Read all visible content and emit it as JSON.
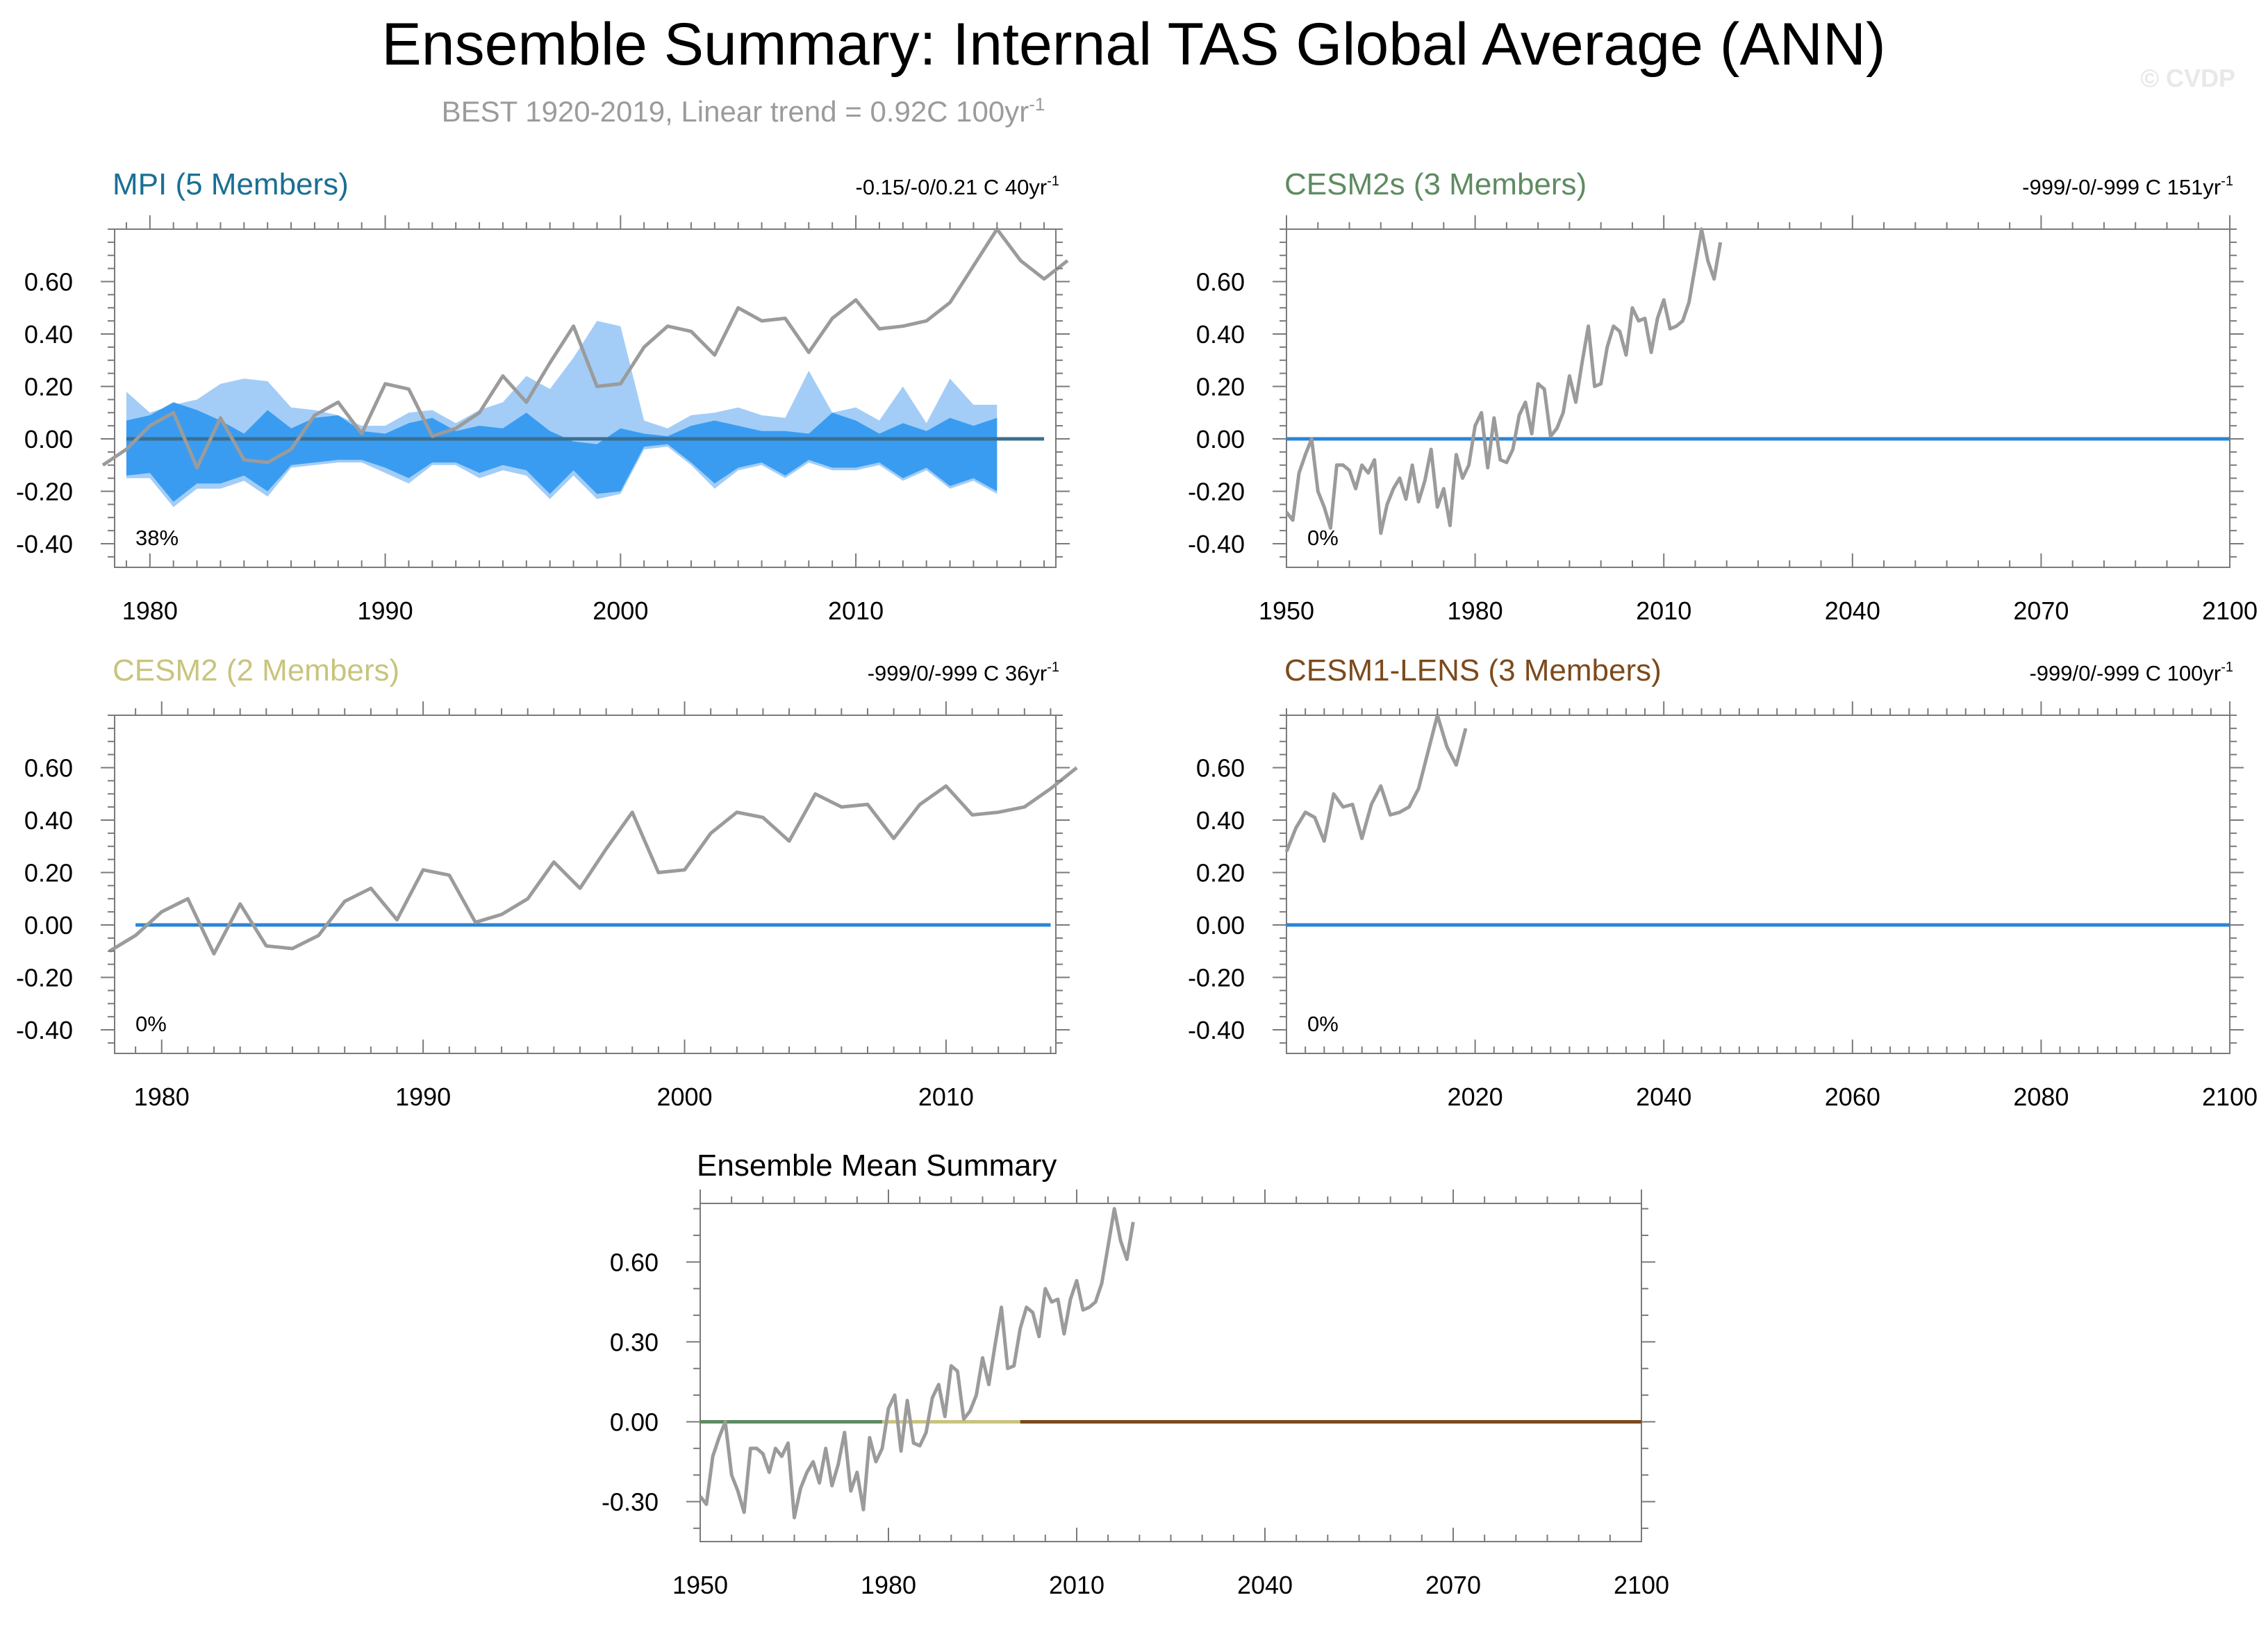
{
  "header": {
    "title": "Ensemble Summary: Internal TAS Global Average (ANN)",
    "subtitle": "BEST 1920-2019, Linear trend = 0.92C 100yr",
    "subtitle_sup": "-1",
    "watermark": "© CVDP"
  },
  "colors": {
    "obs": "#9b9b9b",
    "zero": "#2a84d6",
    "band_outer": "#a3cdf7",
    "band_inner": "#3a9cf0",
    "mpi": "#1a6f94",
    "cesm2s": "#5e8b61",
    "cesm2": "#c9c47e",
    "cesm1": "#7c4a1c",
    "text": "#000000",
    "frame": "#7a7a7a"
  },
  "chart_data": [
    {
      "id": "mpi",
      "type": "area",
      "title": "MPI (5 Members)",
      "title_color": "#1a6f94",
      "right_label": "-0.15/-0/0.21 C 40yr",
      "right_sup": "-1",
      "pct_label": "38%",
      "xlim": [
        1978.5,
        2018.5
      ],
      "ylim": [
        -0.49,
        0.8
      ],
      "xticks": [
        1980,
        1990,
        2000,
        2010
      ],
      "xtick_labels": [
        "1980",
        "1990",
        "2000",
        "2010"
      ],
      "yticks": [
        -0.4,
        -0.2,
        0.0,
        0.2,
        0.4,
        0.6
      ],
      "ytick_labels": [
        "-0.40",
        "-0.20",
        "0.00",
        "0.20",
        "0.40",
        "0.60"
      ],
      "x_minor": 1,
      "y_minor": 0.05,
      "ensemble_band": {
        "x_start": 1979,
        "outer_upper": [
          0.18,
          0.1,
          0.13,
          0.15,
          0.21,
          0.23,
          0.22,
          0.12,
          0.11,
          0.09,
          0.05,
          0.05,
          0.1,
          0.11,
          0.06,
          0.11,
          0.14,
          0.24,
          0.19,
          0.31,
          0.45,
          0.43,
          0.07,
          0.04,
          0.09,
          0.1,
          0.12,
          0.09,
          0.08,
          0.26,
          0.1,
          0.12,
          0.07,
          0.2,
          0.06,
          0.23,
          0.13,
          0.13
        ],
        "inner_upper": [
          0.07,
          0.09,
          0.14,
          0.11,
          0.07,
          0.02,
          0.11,
          0.04,
          0.08,
          0.09,
          0.03,
          0.02,
          0.06,
          0.08,
          0.03,
          0.05,
          0.04,
          0.1,
          0.03,
          -0.01,
          -0.02,
          0.04,
          0.02,
          0.01,
          0.05,
          0.07,
          0.05,
          0.03,
          0.03,
          0.02,
          0.1,
          0.07,
          0.02,
          0.06,
          0.03,
          0.08,
          0.05,
          0.08
        ],
        "inner_lower": [
          -0.14,
          -0.13,
          -0.24,
          -0.17,
          -0.17,
          -0.14,
          -0.2,
          -0.1,
          -0.09,
          -0.08,
          -0.08,
          -0.11,
          -0.15,
          -0.09,
          -0.09,
          -0.13,
          -0.1,
          -0.12,
          -0.21,
          -0.12,
          -0.21,
          -0.2,
          -0.03,
          -0.02,
          -0.09,
          -0.17,
          -0.11,
          -0.09,
          -0.14,
          -0.08,
          -0.11,
          -0.11,
          -0.09,
          -0.15,
          -0.11,
          -0.18,
          -0.15,
          -0.2
        ],
        "outer_lower": [
          -0.15,
          -0.15,
          -0.26,
          -0.19,
          -0.19,
          -0.16,
          -0.22,
          -0.11,
          -0.1,
          -0.09,
          -0.09,
          -0.13,
          -0.17,
          -0.1,
          -0.1,
          -0.15,
          -0.12,
          -0.14,
          -0.23,
          -0.14,
          -0.23,
          -0.21,
          -0.04,
          -0.03,
          -0.1,
          -0.19,
          -0.12,
          -0.1,
          -0.15,
          -0.09,
          -0.12,
          -0.12,
          -0.1,
          -0.16,
          -0.12,
          -0.19,
          -0.16,
          -0.21
        ]
      },
      "ensemble_mean": {
        "x_start": 1979,
        "x_end": 2018,
        "value": 0.0
      },
      "obs_x_start": 1978,
      "obs": [
        -0.1,
        -0.04,
        0.05,
        0.1,
        -0.11,
        0.08,
        -0.08,
        -0.09,
        -0.04,
        0.09,
        0.14,
        0.02,
        0.21,
        0.19,
        0.01,
        0.04,
        0.1,
        0.24,
        0.14,
        0.29,
        0.43,
        0.2,
        0.21,
        0.35,
        0.43,
        0.41,
        0.32,
        0.5,
        0.45,
        0.46,
        0.33,
        0.46,
        0.53,
        0.42,
        0.43,
        0.45,
        0.52,
        0.66,
        0.8,
        0.68,
        0.61,
        0.68
      ]
    },
    {
      "id": "cesm2s",
      "type": "line",
      "title": "CESM2s (3 Members)",
      "title_color": "#5e8b61",
      "right_label": "-999/-0/-999 C 151yr",
      "right_sup": "-1",
      "pct_label": "0%",
      "xlim": [
        1950,
        2100
      ],
      "ylim": [
        -0.49,
        0.8
      ],
      "xticks": [
        1950,
        1980,
        2010,
        2040,
        2070,
        2100
      ],
      "xtick_labels": [
        "1950",
        "1980",
        "2010",
        "2040",
        "2070",
        "2100"
      ],
      "yticks": [
        -0.4,
        -0.2,
        0.0,
        0.2,
        0.4,
        0.6
      ],
      "ytick_labels": [
        "-0.40",
        "-0.20",
        "0.00",
        "0.20",
        "0.40",
        "0.60"
      ],
      "x_minor": 5,
      "y_minor": 0.05,
      "ensemble_mean": {
        "x_start": 1950,
        "x_end": 2100,
        "value": 0.0
      },
      "obs_x_start": 1950,
      "obs": [
        -0.28,
        -0.31,
        -0.13,
        -0.06,
        0.0,
        -0.2,
        -0.26,
        -0.34,
        -0.1,
        -0.1,
        -0.12,
        -0.19,
        -0.1,
        -0.13,
        -0.08,
        -0.36,
        -0.25,
        -0.19,
        -0.15,
        -0.23,
        -0.1,
        -0.24,
        -0.16,
        -0.04,
        -0.26,
        -0.19,
        -0.33,
        -0.06,
        -0.15,
        -0.1,
        0.05,
        0.1,
        -0.11,
        0.08,
        -0.08,
        -0.09,
        -0.04,
        0.09,
        0.14,
        0.02,
        0.21,
        0.19,
        0.01,
        0.04,
        0.1,
        0.24,
        0.14,
        0.29,
        0.43,
        0.2,
        0.21,
        0.35,
        0.43,
        0.41,
        0.32,
        0.5,
        0.45,
        0.46,
        0.33,
        0.46,
        0.53,
        0.42,
        0.43,
        0.45,
        0.52,
        0.66,
        0.8,
        0.68,
        0.61,
        0.75
      ]
    },
    {
      "id": "cesm2",
      "type": "line",
      "title": "CESM2 (2 Members)",
      "title_color": "#c9c47e",
      "right_label": "-999/0/-999 C 36yr",
      "right_sup": "-1",
      "pct_label": "0%",
      "xlim": [
        1978.2,
        2014.2
      ],
      "ylim": [
        -0.49,
        0.8
      ],
      "xticks": [
        1980,
        1990,
        2000,
        2010
      ],
      "xtick_labels": [
        "1980",
        "1990",
        "2000",
        "2010"
      ],
      "yticks": [
        -0.4,
        -0.2,
        0.0,
        0.2,
        0.4,
        0.6
      ],
      "ytick_labels": [
        "-0.40",
        "-0.20",
        "0.00",
        "0.20",
        "0.40",
        "0.60"
      ],
      "x_minor": 1,
      "y_minor": 0.05,
      "ensemble_mean": {
        "x_start": 1979,
        "x_end": 2014,
        "value": 0.0
      },
      "obs_x_start": 1978,
      "obs": [
        -0.1,
        -0.04,
        0.05,
        0.1,
        -0.11,
        0.08,
        -0.08,
        -0.09,
        -0.04,
        0.09,
        0.14,
        0.02,
        0.21,
        0.19,
        0.01,
        0.04,
        0.1,
        0.24,
        0.14,
        0.29,
        0.43,
        0.2,
        0.21,
        0.35,
        0.43,
        0.41,
        0.32,
        0.5,
        0.45,
        0.46,
        0.33,
        0.46,
        0.53,
        0.42,
        0.43,
        0.45,
        0.52,
        0.6
      ]
    },
    {
      "id": "cesm1",
      "type": "line",
      "title": "CESM1-LENS (3 Members)",
      "title_color": "#7c4a1c",
      "right_label": "-999/0/-999 C 100yr",
      "right_sup": "-1",
      "pct_label": "0%",
      "xlim": [
        2000,
        2100
      ],
      "ylim": [
        -0.49,
        0.8
      ],
      "xticks": [
        2020,
        2040,
        2060,
        2080,
        2100
      ],
      "xtick_labels": [
        "2020",
        "2040",
        "2060",
        "2080",
        "2100"
      ],
      "yticks": [
        -0.4,
        -0.2,
        0.0,
        0.2,
        0.4,
        0.6
      ],
      "ytick_labels": [
        "-0.40",
        "-0.20",
        "0.00",
        "0.20",
        "0.40",
        "0.60"
      ],
      "x_minor": 2,
      "y_minor": 0.05,
      "ensemble_mean": {
        "x_start": 2000,
        "x_end": 2100,
        "value": 0.0
      },
      "obs_x_start": 2000,
      "obs": [
        0.28,
        0.37,
        0.43,
        0.41,
        0.32,
        0.5,
        0.45,
        0.46,
        0.33,
        0.46,
        0.53,
        0.42,
        0.43,
        0.45,
        0.52,
        0.66,
        0.8,
        0.68,
        0.61,
        0.75
      ]
    },
    {
      "id": "mean",
      "type": "line",
      "title": "Ensemble Mean Summary",
      "title_color": "#000000",
      "xlim": [
        1950,
        2100
      ],
      "ylim": [
        -0.45,
        0.82
      ],
      "xticks": [
        1950,
        1980,
        2010,
        2040,
        2070,
        2100
      ],
      "xtick_labels": [
        "1950",
        "1980",
        "2010",
        "2040",
        "2070",
        "2100"
      ],
      "yticks": [
        -0.3,
        0.0,
        0.3,
        0.6
      ],
      "ytick_labels": [
        "-0.30",
        "0.00",
        "0.30",
        "0.60"
      ],
      "x_minor": 5,
      "y_minor": 0.1,
      "segments": [
        {
          "name": "CESM2s",
          "x_start": 1950,
          "x_end": 1979,
          "value": 0.0,
          "color": "#5e8b61"
        },
        {
          "name": "CESM2",
          "x_start": 1979,
          "x_end": 2001,
          "value": 0.0,
          "color": "#c9c47e"
        },
        {
          "name": "CESM1-LENS",
          "x_start": 2001,
          "x_end": 2100,
          "value": 0.0,
          "color": "#7c4a1c"
        }
      ],
      "obs_x_start": 1950,
      "obs": [
        -0.28,
        -0.31,
        -0.13,
        -0.06,
        0.0,
        -0.2,
        -0.26,
        -0.34,
        -0.1,
        -0.1,
        -0.12,
        -0.19,
        -0.1,
        -0.13,
        -0.08,
        -0.36,
        -0.25,
        -0.19,
        -0.15,
        -0.23,
        -0.1,
        -0.24,
        -0.16,
        -0.04,
        -0.26,
        -0.19,
        -0.33,
        -0.06,
        -0.15,
        -0.1,
        0.05,
        0.1,
        -0.11,
        0.08,
        -0.08,
        -0.09,
        -0.04,
        0.09,
        0.14,
        0.02,
        0.21,
        0.19,
        0.01,
        0.04,
        0.1,
        0.24,
        0.14,
        0.29,
        0.43,
        0.2,
        0.21,
        0.35,
        0.43,
        0.41,
        0.32,
        0.5,
        0.45,
        0.46,
        0.33,
        0.46,
        0.53,
        0.42,
        0.43,
        0.45,
        0.52,
        0.66,
        0.8,
        0.68,
        0.61,
        0.75
      ]
    }
  ]
}
